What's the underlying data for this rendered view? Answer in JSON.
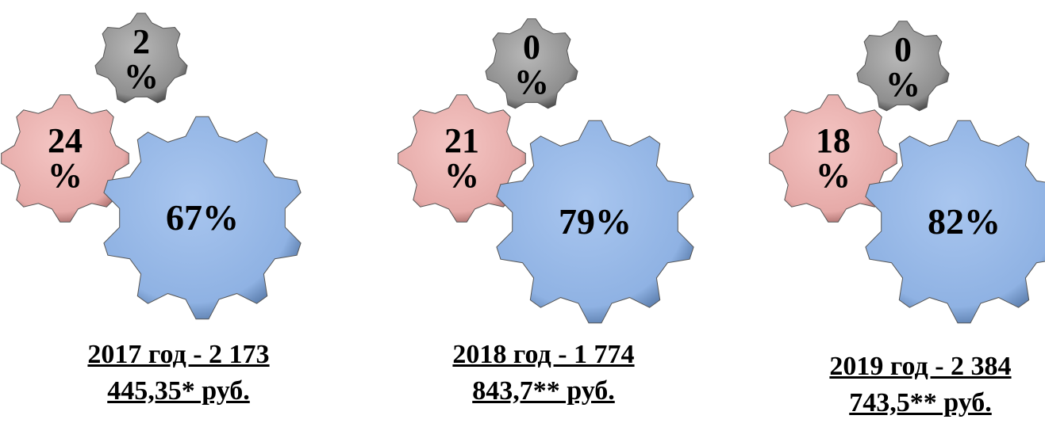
{
  "groups": [
    {
      "gears": [
        {
          "label": "2\n%"
        },
        {
          "label": "24\n%"
        },
        {
          "label": "67%"
        }
      ],
      "caption": "2017 год - 2 173\n445,35* руб."
    },
    {
      "gears": [
        {
          "label": "0\n%"
        },
        {
          "label": "21\n%"
        },
        {
          "label": "79%"
        }
      ],
      "caption": "2018 год - 1 774\n843,7** руб."
    },
    {
      "gears": [
        {
          "label": "0\n%"
        },
        {
          "label": "18\n%"
        },
        {
          "label": "82%"
        }
      ],
      "caption": "2019 год - 2 384\n743,5** руб."
    }
  ]
}
